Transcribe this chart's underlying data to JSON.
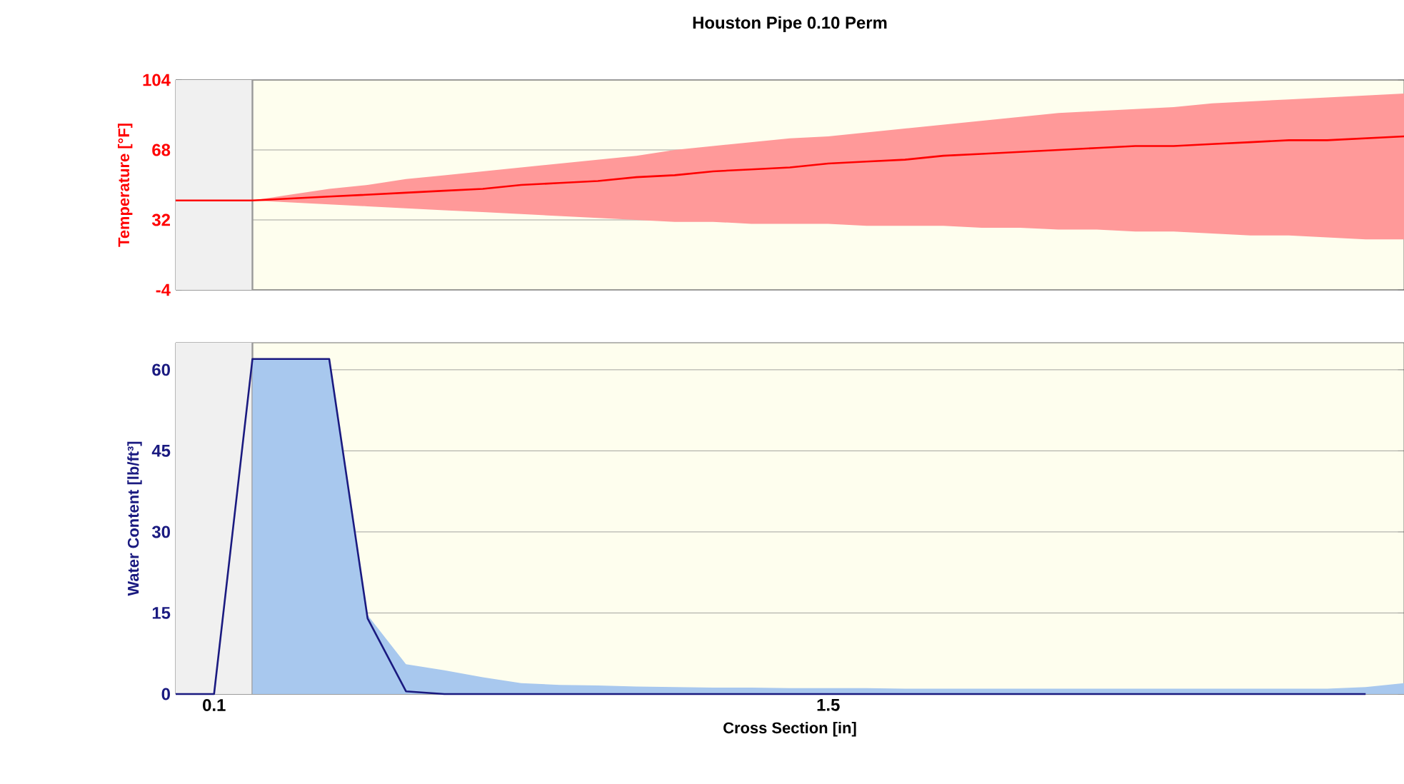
{
  "chart_data": [
    {
      "type": "line",
      "title": "Houston Pipe 0.10 Perm",
      "ylabel": "Temperature [°F]",
      "categories": [
        null,
        null,
        null,
        null,
        null,
        null,
        null,
        null,
        null,
        null,
        null,
        null,
        null,
        null,
        null,
        null,
        null,
        null,
        null,
        null,
        null,
        null,
        null,
        null,
        null,
        null,
        null,
        null,
        null,
        null,
        null,
        null,
        null
      ],
      "ylim": [
        -4,
        104
      ],
      "yticks": [
        -4,
        32,
        68,
        104
      ],
      "grid": "y",
      "series": [
        {
          "color": "#ff0000",
          "values": [
            42,
            42,
            42,
            43,
            44,
            45,
            46,
            47,
            48,
            50,
            51,
            52,
            54,
            55,
            57,
            58,
            59,
            61,
            62,
            63,
            65,
            66,
            67,
            68,
            69,
            70,
            70,
            71,
            72,
            73,
            73,
            74,
            75
          ],
          "lower": [
            42,
            42,
            42,
            41,
            40,
            39,
            38,
            37,
            36,
            35,
            34,
            33,
            32,
            31,
            31,
            30,
            30,
            30,
            29,
            29,
            29,
            28,
            28,
            27,
            27,
            26,
            26,
            25,
            24,
            24,
            23,
            22,
            22
          ],
          "upper": [
            42,
            42,
            42,
            45,
            48,
            50,
            53,
            55,
            57,
            59,
            61,
            63,
            65,
            68,
            70,
            72,
            74,
            75,
            77,
            79,
            81,
            83,
            85,
            87,
            88,
            89,
            90,
            92,
            93,
            94,
            95,
            96,
            97
          ]
        }
      ]
    },
    {
      "type": "line",
      "xlabel": "Cross Section [in]",
      "ylabel": "Water Content [lb/ft³]",
      "annotations": [
        "0.1",
        "1.5"
      ],
      "categories": [
        null,
        null,
        null,
        null,
        null,
        null,
        null,
        null,
        null,
        null,
        null,
        null,
        null,
        null,
        null,
        null,
        null,
        null,
        null,
        null,
        null,
        null,
        null,
        null,
        null,
        null,
        null,
        null,
        null,
        null,
        null,
        null,
        null
      ],
      "ylim": [
        0,
        65
      ],
      "yticks": [
        0,
        15,
        30,
        45,
        60
      ],
      "grid": "y",
      "series": [
        {
          "type": "area",
          "color": "#a8c8ee",
          "values": [
            null,
            null,
            62,
            62,
            62,
            14.6,
            5.5,
            4.4,
            3.1,
            2,
            1.7,
            1.6,
            1.4,
            1.3,
            1.2,
            1.2,
            1.1,
            1.1,
            1.1,
            1,
            1,
            1,
            1,
            1,
            1,
            1,
            1,
            1,
            1,
            1,
            1,
            1.3,
            2
          ]
        },
        {
          "color": "#1a1a80",
          "values": [
            0,
            0,
            62,
            62,
            62,
            14,
            0.5,
            0,
            0,
            0,
            0,
            0,
            0,
            0,
            0,
            0,
            0,
            0,
            0,
            0,
            0,
            0,
            0,
            0,
            0,
            0,
            0,
            0,
            0,
            0,
            0,
            0,
            null
          ]
        }
      ]
    }
  ]
}
